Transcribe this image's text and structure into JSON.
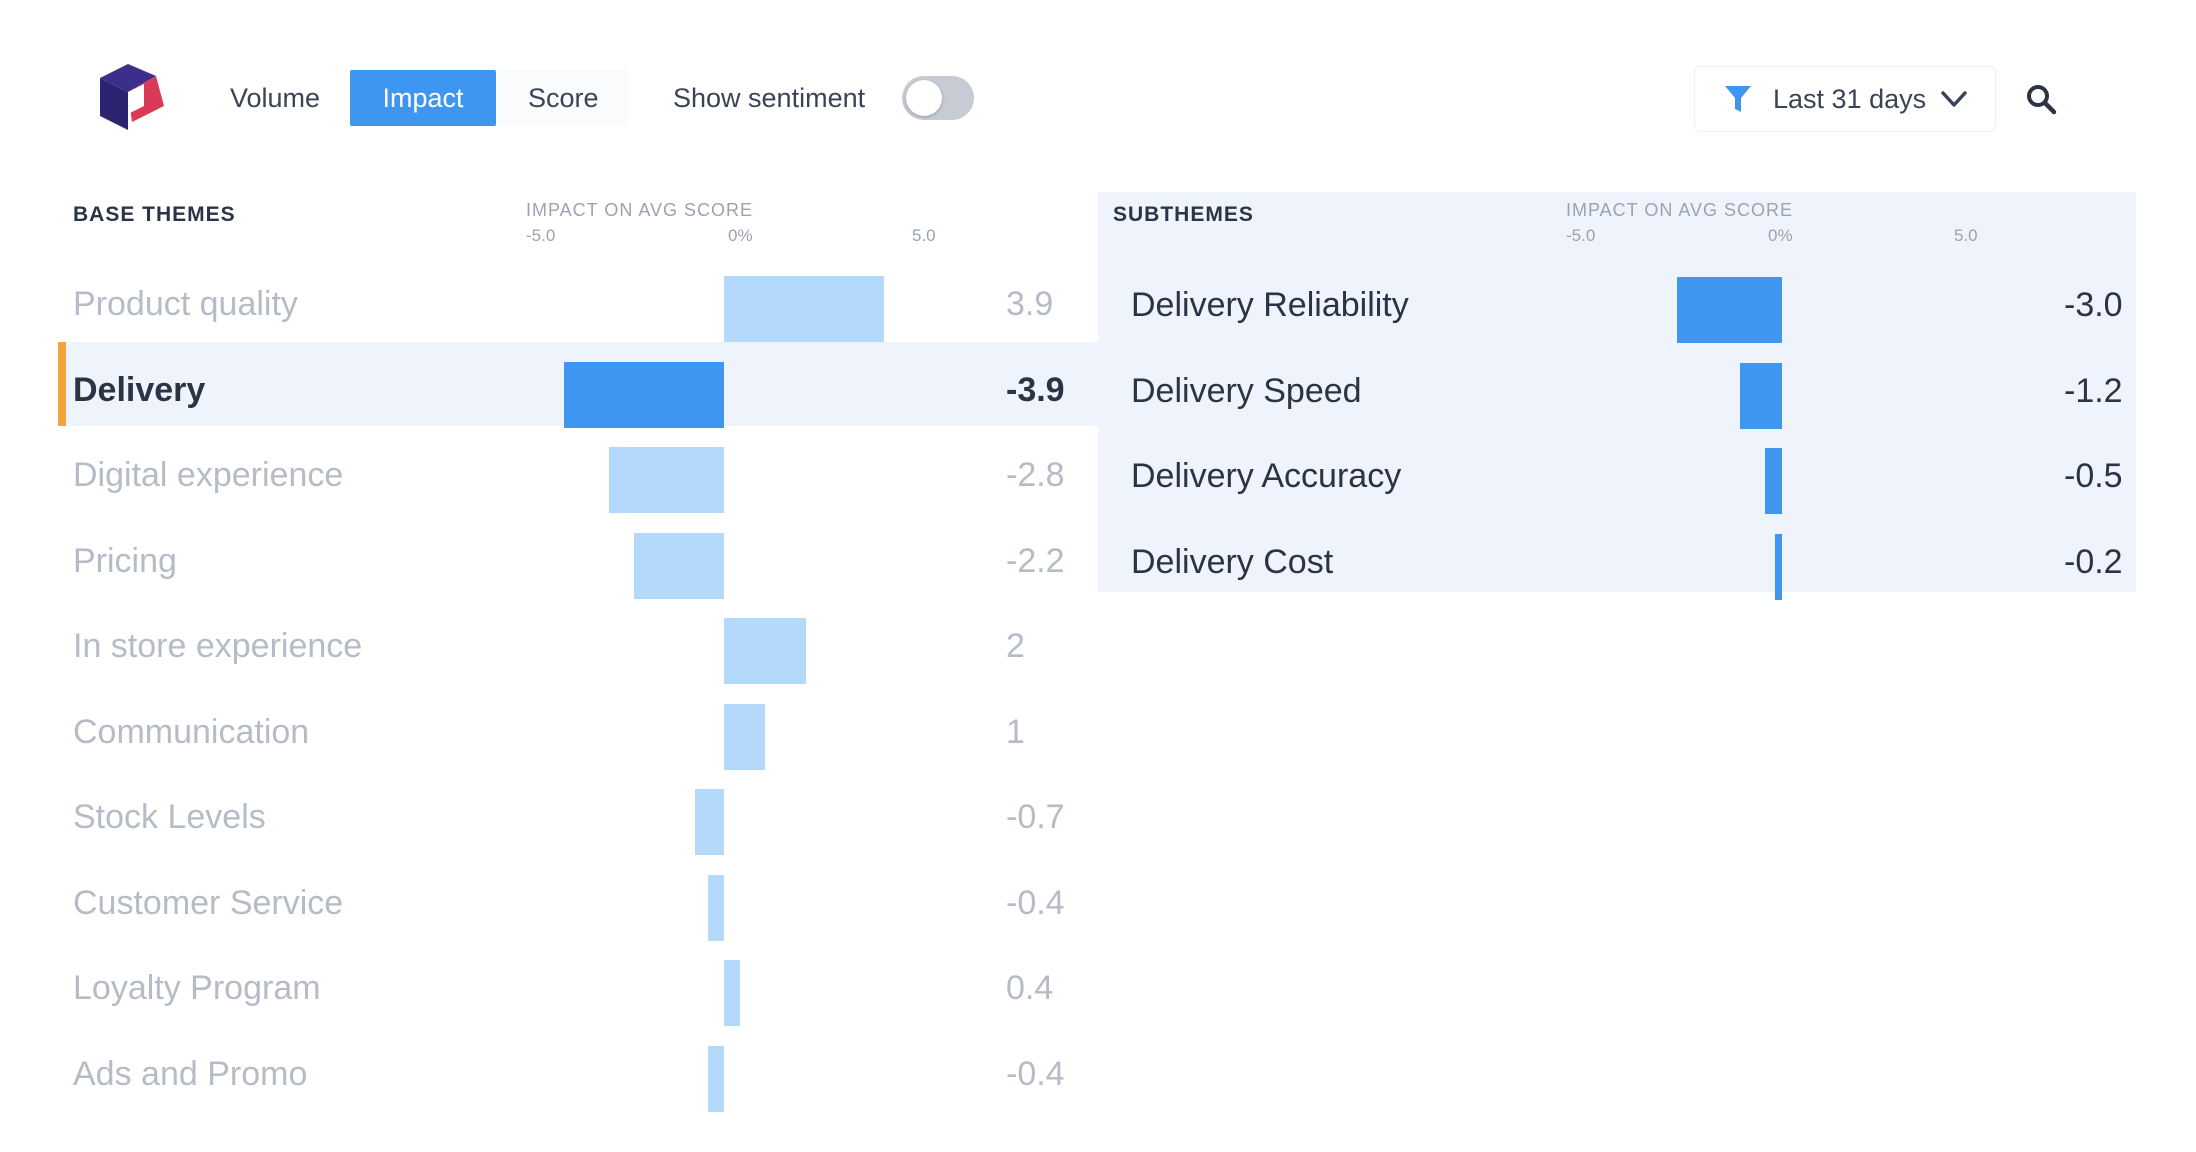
{
  "toolbar": {
    "tabs": [
      {
        "label": "Volume",
        "active": false
      },
      {
        "label": "Impact",
        "active": true
      },
      {
        "label": "Score",
        "active": false
      }
    ],
    "sentiment_label": "Show sentiment",
    "sentiment_on": false,
    "date_range": "Last 31 days",
    "icons": {
      "logo": "app-logo",
      "filter": "filter-icon",
      "chevron": "chevron-down-icon",
      "search": "search-icon"
    }
  },
  "base_themes": {
    "title": "BASE THEMES",
    "axis_title": "IMPACT ON AVG SCORE",
    "ticks": [
      "-5.0",
      "0%",
      "5.0"
    ],
    "selected": "Delivery",
    "rows": [
      {
        "label": "Product quality",
        "value": 3.9,
        "display": "3.9"
      },
      {
        "label": "Delivery",
        "value": -3.9,
        "display": "-3.9"
      },
      {
        "label": "Digital experience",
        "value": -2.8,
        "display": "-2.8"
      },
      {
        "label": "Pricing",
        "value": -2.2,
        "display": "-2.2"
      },
      {
        "label": "In store experience",
        "value": 2,
        "display": "2"
      },
      {
        "label": "Communication",
        "value": 1,
        "display": "1"
      },
      {
        "label": "Stock Levels",
        "value": -0.7,
        "display": "-0.7"
      },
      {
        "label": "Customer Service",
        "value": -0.4,
        "display": "-0.4"
      },
      {
        "label": "Loyalty Program",
        "value": 0.4,
        "display": "0.4"
      },
      {
        "label": "Ads and Promo",
        "value": -0.4,
        "display": "-0.4"
      }
    ]
  },
  "subthemes": {
    "title": "SUBTHEMES",
    "axis_title": "IMPACT ON AVG SCORE",
    "ticks": [
      "-5.0",
      "0%",
      "5.0"
    ],
    "rows": [
      {
        "label": "Delivery Reliability",
        "value": -3.0,
        "display": "-3.0"
      },
      {
        "label": "Delivery Speed",
        "value": -1.2,
        "display": "-1.2"
      },
      {
        "label": "Delivery Accuracy",
        "value": -0.5,
        "display": "-0.5"
      },
      {
        "label": "Delivery Cost",
        "value": -0.2,
        "display": "-0.2"
      }
    ]
  },
  "colors": {
    "accent": "#3f96f1",
    "bar_dim": "#b3d9fb",
    "bar_strong": "#3f96f1",
    "selected_accent": "#f3a43a",
    "text_dim": "#b6bcc6",
    "text_strong": "#2b3445"
  }
}
